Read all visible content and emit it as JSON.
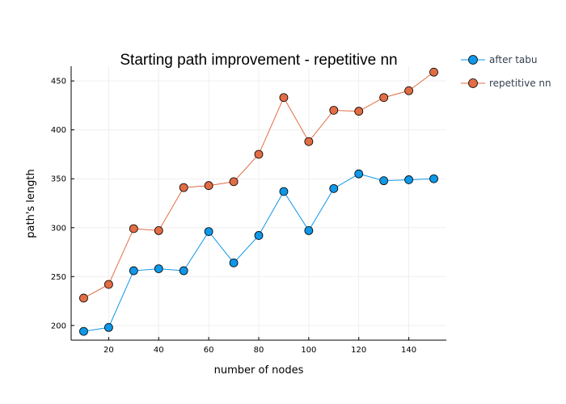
{
  "chart_data": {
    "type": "line",
    "title": "Starting path improvement - repetitive nn",
    "xlabel": "number of nodes",
    "ylabel": "path's length",
    "xlim": [
      5,
      155
    ],
    "ylim": [
      185,
      465
    ],
    "xticks": [
      20,
      40,
      60,
      80,
      100,
      120,
      140
    ],
    "yticks": [
      200,
      250,
      300,
      350,
      400,
      450
    ],
    "grid": true,
    "legend_position": "top-right outside",
    "x": [
      10,
      20,
      30,
      40,
      50,
      60,
      70,
      80,
      90,
      100,
      110,
      120,
      130,
      140,
      150
    ],
    "series": [
      {
        "name": "after tabu",
        "color": "#0f97e8",
        "values": [
          194,
          198,
          256,
          258,
          256,
          296,
          264,
          292,
          337,
          297,
          340,
          355,
          348,
          349,
          350
        ]
      },
      {
        "name": "repetitive nn",
        "color": "#e26d44",
        "values": [
          228,
          242,
          299,
          297,
          341,
          343,
          347,
          375,
          433,
          388,
          420,
          419,
          433,
          440,
          459
        ]
      }
    ]
  }
}
